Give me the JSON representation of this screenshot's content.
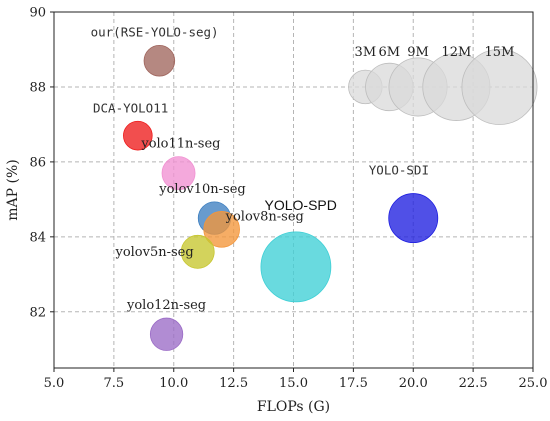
{
  "chart_data": {
    "type": "scatter",
    "xlabel": "FLOPs (G)",
    "ylabel": "mAP (%)",
    "xlim": [
      5.0,
      25.0
    ],
    "ylim": [
      80.5,
      90.0
    ],
    "xticks": [
      "5.0",
      "7.5",
      "10.0",
      "12.5",
      "15.0",
      "17.5",
      "20.0",
      "22.5",
      "25.0"
    ],
    "xtick_values": [
      5.0,
      7.5,
      10.0,
      12.5,
      15.0,
      17.5,
      20.0,
      22.5,
      25.0
    ],
    "yticks": [
      "82",
      "84",
      "86",
      "88",
      "90"
    ],
    "ytick_values": [
      82,
      84,
      86,
      88,
      90
    ],
    "grid": true,
    "points": [
      {
        "label": "our(RSE-YOLO-seg)",
        "x": 9.4,
        "y": 88.7,
        "params_M": 2.5,
        "color": "#a0665e",
        "font": "mono"
      },
      {
        "label": "DCA-YOLO11",
        "x": 8.5,
        "y": 86.7,
        "params_M": 2.2,
        "color": "#ee1c1c",
        "font": "mono"
      },
      {
        "label": "yolo11n-seg",
        "x": 10.2,
        "y": 85.7,
        "params_M": 2.9,
        "color": "#f191d2",
        "font": "serif"
      },
      {
        "label": "yolov10n-seg",
        "x": 11.7,
        "y": 84.5,
        "params_M": 2.8,
        "color": "#3d7fc0",
        "font": "serif"
      },
      {
        "label": "yolov8n-seg",
        "x": 12.0,
        "y": 84.2,
        "params_M": 3.4,
        "color": "#f4963a",
        "font": "serif"
      },
      {
        "label": "yolov5n-seg",
        "x": 11.0,
        "y": 83.6,
        "params_M": 2.9,
        "color": "#c7c62e",
        "font": "serif"
      },
      {
        "label": "YOLO-SPD",
        "x": 15.1,
        "y": 83.2,
        "params_M": 13.0,
        "color": "#3fd0d6",
        "font": "sans"
      },
      {
        "label": "YOLO-SDI",
        "x": 20.0,
        "y": 84.5,
        "params_M": 6.4,
        "color": "#1f1fe0",
        "font": "mono"
      },
      {
        "label": "yolo12n-seg",
        "x": 9.7,
        "y": 81.4,
        "params_M": 2.8,
        "color": "#9b6cc6",
        "font": "serif"
      }
    ],
    "size_legend": [
      {
        "label": "3M",
        "params_M": 3,
        "x": 18.0
      },
      {
        "label": "6M",
        "params_M": 6,
        "x": 19.0
      },
      {
        "label": "9M",
        "params_M": 9,
        "x": 20.2
      },
      {
        "label": "12M",
        "params_M": 12,
        "x": 21.8
      },
      {
        "label": "15M",
        "params_M": 15,
        "x": 23.6
      }
    ],
    "size_legend_y": 88.0,
    "size_legend_color": "#d9d9d9"
  }
}
